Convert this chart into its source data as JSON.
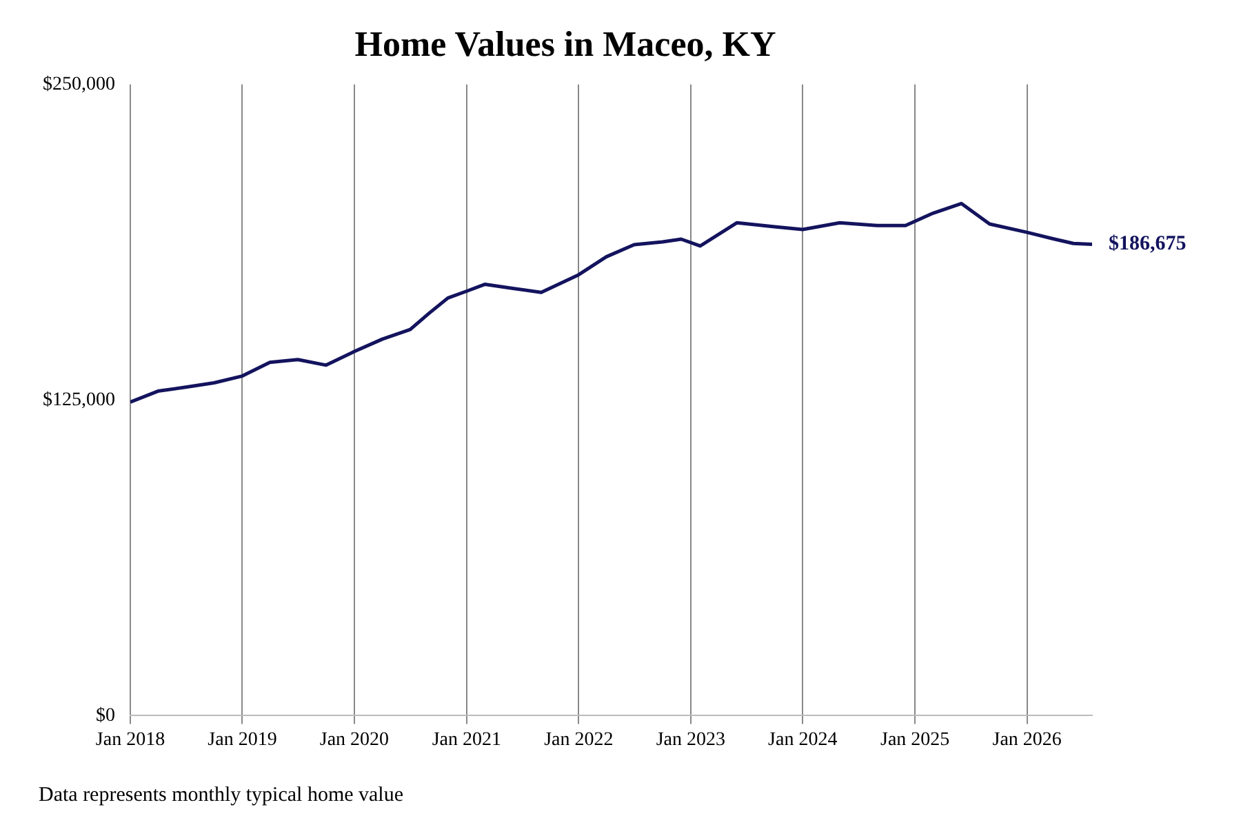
{
  "chart_data": {
    "type": "line",
    "title": "Home Values in Maceo, KY",
    "x": [
      "2018-01",
      "2018-04",
      "2018-07",
      "2018-10",
      "2019-01",
      "2019-04",
      "2019-07",
      "2019-10",
      "2020-01",
      "2020-04",
      "2020-07",
      "2020-09",
      "2020-11",
      "2021-01",
      "2021-03",
      "2021-06",
      "2021-09",
      "2022-01",
      "2022-04",
      "2022-07",
      "2022-10",
      "2022-12",
      "2023-02",
      "2023-06",
      "2023-10",
      "2024-01",
      "2024-05",
      "2024-09",
      "2024-12",
      "2025-03",
      "2025-06",
      "2025-09",
      "2026-01",
      "2026-04",
      "2026-06",
      "2026-08"
    ],
    "series": [
      {
        "color": "#13135e",
        "values": [
          124200,
          128500,
          130100,
          131800,
          134500,
          139900,
          141000,
          138800,
          144200,
          149100,
          152900,
          159400,
          165400,
          168100,
          170800,
          169200,
          167600,
          174600,
          181700,
          186500,
          187600,
          188700,
          186000,
          195200,
          193600,
          192500,
          195200,
          194100,
          194100,
          199000,
          202800,
          194700,
          191400,
          188700,
          187000,
          186675
        ],
        "value_labels": [
          null,
          null,
          null,
          null,
          null,
          null,
          null,
          null,
          null,
          null,
          null,
          null,
          null,
          null,
          null,
          null,
          null,
          null,
          null,
          null,
          null,
          null,
          null,
          null,
          null,
          null,
          null,
          null,
          null,
          null,
          null,
          null,
          null,
          null,
          null,
          "$186,675"
        ]
      }
    ],
    "xticks": [
      {
        "value": "2018-01",
        "label": "Jan 2018"
      },
      {
        "value": "2019-01",
        "label": "Jan 2019"
      },
      {
        "value": "2020-01",
        "label": "Jan 2020"
      },
      {
        "value": "2021-01",
        "label": "Jan 2021"
      },
      {
        "value": "2022-01",
        "label": "Jan 2022"
      },
      {
        "value": "2023-01",
        "label": "Jan 2023"
      },
      {
        "value": "2024-01",
        "label": "Jan 2024"
      },
      {
        "value": "2025-01",
        "label": "Jan 2025"
      },
      {
        "value": "2026-01",
        "label": "Jan 2026"
      }
    ],
    "xlim": [
      "2018-01",
      "2026-08"
    ],
    "ylim": [
      0,
      250000
    ],
    "yticks": [
      {
        "value": 0,
        "label": "$0"
      },
      {
        "value": 125000,
        "label": "$125,000"
      },
      {
        "value": 250000,
        "label": "$250,000"
      }
    ],
    "grid": "x",
    "marker": "none",
    "line_style": "solid",
    "annotations": [
      "Data represents monthly typical home value"
    ]
  }
}
